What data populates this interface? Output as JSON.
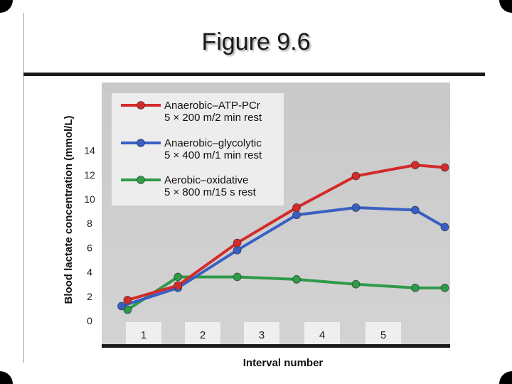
{
  "slide": {
    "title": "Figure 9.6"
  },
  "chart_data": {
    "type": "line",
    "title": "",
    "xlabel": "Interval number",
    "ylabel": "Blood lactate concentration (mmol/L)",
    "ylim": [
      0,
      14
    ],
    "yticks": [
      "0",
      "2",
      "4",
      "6",
      "8",
      "10",
      "12",
      "14"
    ],
    "interval_labels": [
      "1",
      "2",
      "3",
      "4",
      "5"
    ],
    "grid": false,
    "legend_placement": "top-left",
    "series": [
      {
        "name": "Anaerobic–ATP-PCr",
        "detail": "5 × 200 m/2 min rest",
        "color": "#d42a2a",
        "x": [
          0.1,
          0.95,
          1.95,
          2.95,
          3.95,
          4.95,
          5.45
        ],
        "y": [
          1.7,
          2.9,
          6.4,
          9.3,
          11.9,
          12.8,
          12.6
        ]
      },
      {
        "name": "Anaerobic–glycolytic",
        "detail": "5 × 400 m/1 min rest",
        "color": "#3a5fc4",
        "x": [
          0.0,
          0.95,
          1.95,
          2.95,
          3.95,
          4.95,
          5.45
        ],
        "y": [
          1.2,
          2.7,
          5.8,
          8.7,
          9.3,
          9.1,
          7.7
        ]
      },
      {
        "name": "Aerobic–oxidative",
        "detail": "5 × 800 m/15 s rest",
        "color": "#2f9a48",
        "x": [
          0.1,
          0.95,
          1.95,
          2.95,
          3.95,
          4.95,
          5.45
        ],
        "y": [
          0.9,
          3.6,
          3.6,
          3.4,
          3.0,
          2.7,
          2.7
        ]
      }
    ]
  }
}
